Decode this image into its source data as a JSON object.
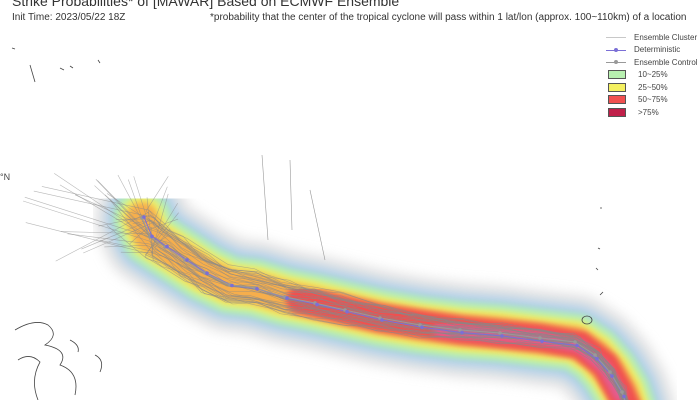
{
  "header": {
    "title": "Strike Probabilities* of [MAWAR] Based on ECMWF Ensemble",
    "init_time": "Init Time: 2023/05/22 18Z",
    "note": "*probability that the center of the tropical cyclone will pass within 1 lat/lon (approx. 100~110km) of a location"
  },
  "map": {
    "lat_label": "°N"
  },
  "legend": {
    "items": [
      {
        "label": "Ensemble Cluster",
        "kind": "line",
        "color": "#c8c8c8"
      },
      {
        "label": "Deterministic",
        "kind": "line-dot",
        "color": "#7b6fd6"
      },
      {
        "label": "Ensemble Control",
        "kind": "line-dot",
        "color": "#999999"
      },
      {
        "label": "10~25%",
        "kind": "box",
        "color": "#b8f0b0"
      },
      {
        "label": "25~50%",
        "kind": "box",
        "color": "#f4f060"
      },
      {
        "label": "50~75%",
        "kind": "box",
        "color": "#f05050"
      },
      {
        "label": ">75%",
        "kind": "box",
        "color": "#c0204a"
      }
    ]
  }
}
